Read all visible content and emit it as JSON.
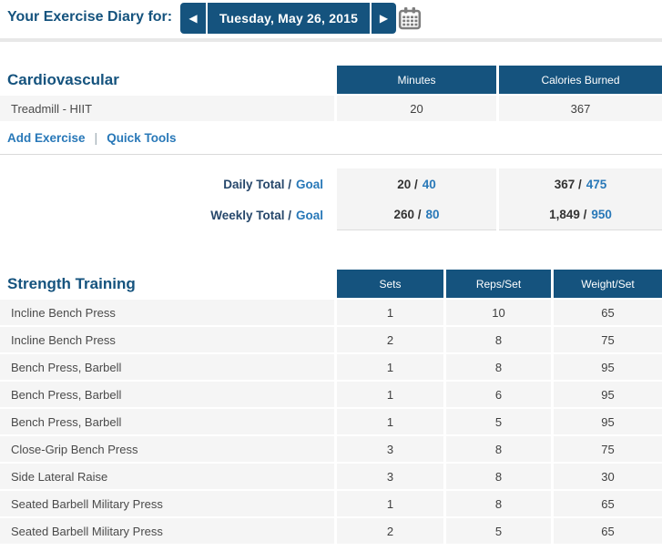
{
  "colors": {
    "navy": "#15537E",
    "link_blue": "#2878B8",
    "row_bg": "#F5F5F5",
    "divider_thick": "#E8E8E8",
    "divider_thin": "#D9D9D9",
    "header_text": "#FFFFFF",
    "calendar_gray": "#7D7D7D"
  },
  "header": {
    "title": "Your Exercise Diary for:",
    "prev_arrow": "◀",
    "next_arrow": "▶",
    "date": "Tuesday, May 26, 2015",
    "calendar_icon": "calendar-icon"
  },
  "cardio": {
    "title": "Cardiovascular",
    "columns": [
      "Minutes",
      "Calories Burned"
    ],
    "rows": [
      {
        "name": "Treadmill - HIIT",
        "values": [
          "20",
          "367"
        ]
      }
    ],
    "links": {
      "add_exercise": "Add Exercise",
      "separator": "|",
      "quick_tools": "Quick Tools"
    },
    "totals": [
      {
        "label": "Daily Total /",
        "goal_word": "Goal",
        "cells": [
          [
            "20 /",
            "40"
          ],
          [
            "367 /",
            "475"
          ]
        ]
      },
      {
        "label": "Weekly Total /",
        "goal_word": "Goal",
        "cells": [
          [
            "260 /",
            "80"
          ],
          [
            "1,849 /",
            "950"
          ]
        ]
      }
    ]
  },
  "strength": {
    "title": "Strength Training",
    "columns": [
      "Sets",
      "Reps/Set",
      "Weight/Set"
    ],
    "rows": [
      {
        "name": "Incline Bench Press",
        "values": [
          "1",
          "10",
          "65"
        ]
      },
      {
        "name": "Incline Bench Press",
        "values": [
          "2",
          "8",
          "75"
        ]
      },
      {
        "name": "Bench Press, Barbell",
        "values": [
          "1",
          "8",
          "95"
        ]
      },
      {
        "name": "Bench Press, Barbell",
        "values": [
          "1",
          "6",
          "95"
        ]
      },
      {
        "name": "Bench Press, Barbell",
        "values": [
          "1",
          "5",
          "95"
        ]
      },
      {
        "name": "Close-Grip Bench Press",
        "values": [
          "3",
          "8",
          "75"
        ]
      },
      {
        "name": "Side Lateral Raise",
        "values": [
          "3",
          "8",
          "30"
        ]
      },
      {
        "name": "Seated Barbell Military Press",
        "values": [
          "1",
          "8",
          "65"
        ]
      },
      {
        "name": "Seated Barbell Military Press",
        "values": [
          "2",
          "5",
          "65"
        ]
      }
    ]
  }
}
